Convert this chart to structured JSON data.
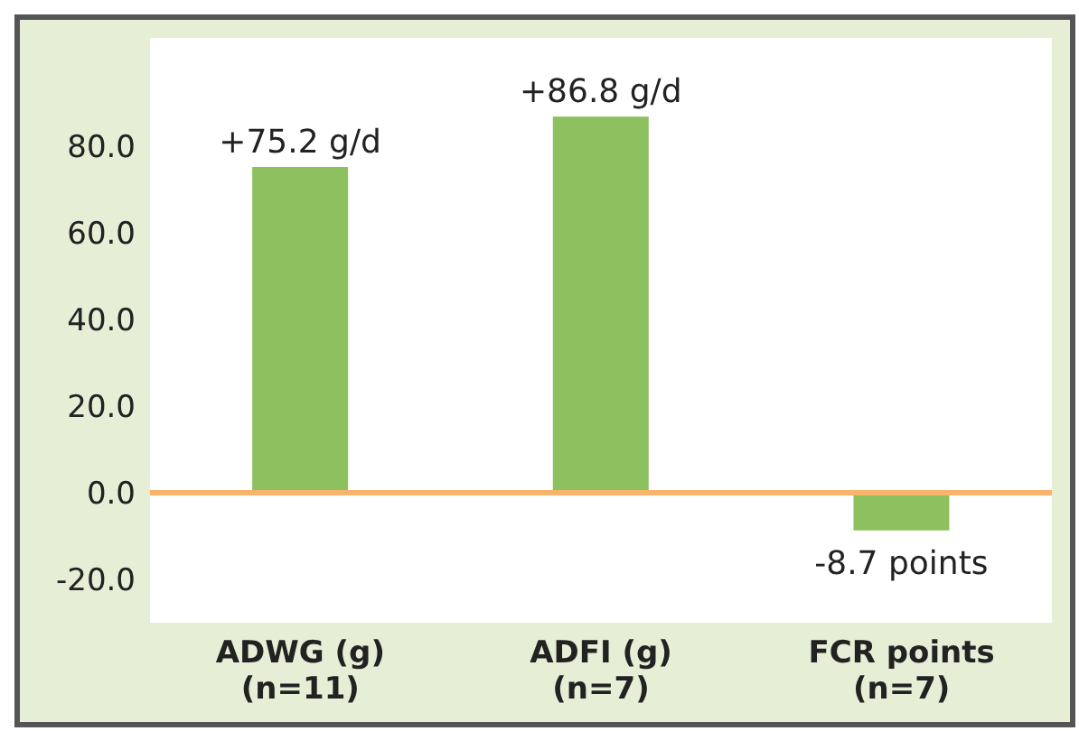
{
  "chart_data": {
    "type": "bar",
    "categories": [
      "ADWG (g)\n(n=11)",
      "ADFI (g)\n(n=7)",
      "FCR points\n(n=7)"
    ],
    "values": [
      75.2,
      86.8,
      -8.7
    ],
    "color": "#8dc05f",
    "value_labels": [
      "+75.2 g/d",
      "+86.8 g/d",
      "-8.7 points"
    ],
    "ylim": [
      -30,
      105
    ],
    "yticks": [
      {
        "value": -20,
        "label": "-20.0"
      },
      {
        "value": 0,
        "label": "0.0"
      },
      {
        "value": 20,
        "label": "20.0"
      },
      {
        "value": 40,
        "label": "40.0"
      },
      {
        "value": 60,
        "label": "60.0"
      },
      {
        "value": 80,
        "label": "80.0"
      }
    ],
    "ref_lines": [
      {
        "axis": "y",
        "value": 0,
        "color": "#f7b46a"
      }
    ],
    "grid": false,
    "legend": false
  }
}
